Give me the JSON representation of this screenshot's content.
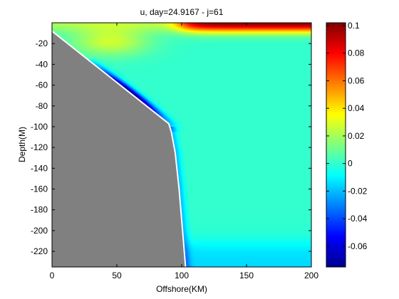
{
  "chart_data": {
    "type": "heatmap",
    "title": "u, day=24.9167 - j=61",
    "xlabel": "Offshore(KM)",
    "ylabel": "Depth(M)",
    "xlim": [
      0,
      200
    ],
    "ylim": [
      -235,
      0
    ],
    "x_ticks": [
      0,
      50,
      100,
      150,
      200
    ],
    "y_ticks": [
      -20,
      -40,
      -60,
      -80,
      -100,
      -120,
      -140,
      -160,
      -180,
      -200,
      -220
    ],
    "colorbar": {
      "colormap": "jet",
      "range": [
        -0.075,
        0.102
      ],
      "ticks": [
        0.1,
        0.08,
        0.06,
        0.04,
        0.02,
        0,
        -0.02,
        -0.04,
        -0.06
      ]
    },
    "bathymetry": {
      "x": [
        0,
        90,
        92,
        95,
        98,
        101,
        103
      ],
      "depth": [
        -8,
        -97,
        -105,
        -125,
        -160,
        -205,
        -235
      ]
    },
    "land_color": "#808080",
    "field_features": {
      "background_u": 0.0,
      "surface_jet_u_max": 0.1,
      "surface_jet_x_start": 100,
      "upper_band_u": 0.03,
      "slope_undercurrent_u_min": -0.075,
      "slope_undercurrent_depth_range": [
        -40,
        -95
      ],
      "deep_u": -0.015
    }
  }
}
